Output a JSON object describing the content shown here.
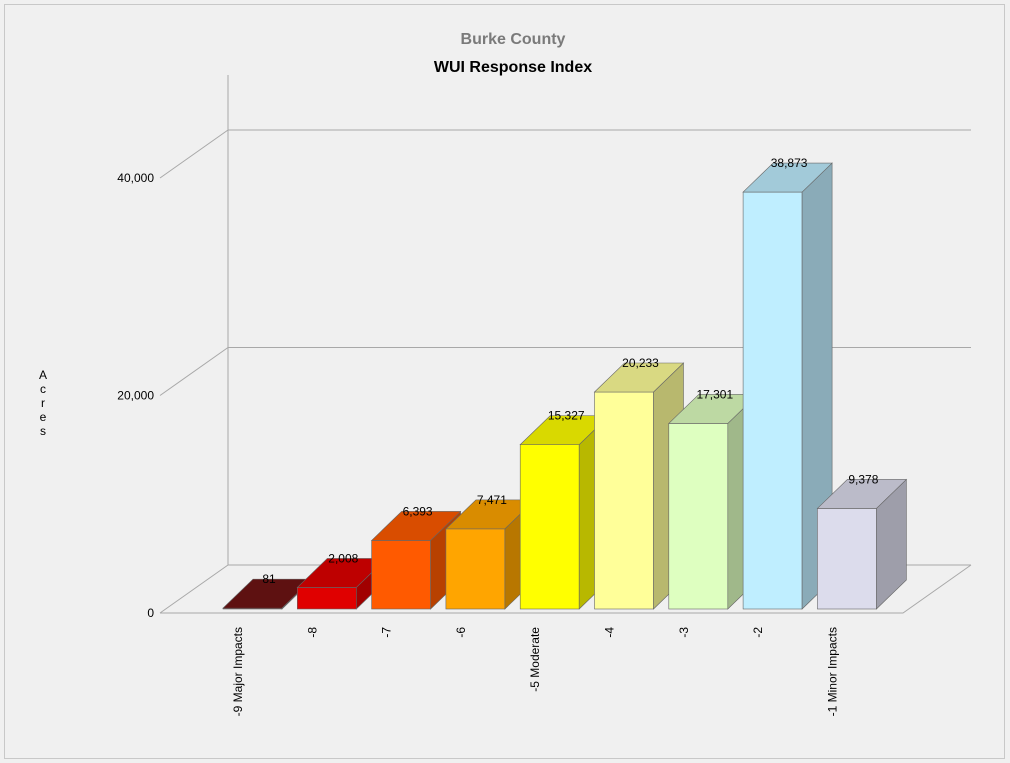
{
  "chart_data": {
    "type": "bar",
    "subtitle": "Burke County",
    "title": "WUI Response Index",
    "ylabel": "Acres",
    "xlabel": "",
    "ylim": [
      0,
      40000
    ],
    "yticks": [
      0,
      20000,
      40000
    ],
    "ytick_labels": [
      "0",
      "20,000",
      "40,000"
    ],
    "categories": [
      "-9 Major Impacts",
      "-8",
      "-7",
      "-6",
      "-5 Moderate",
      "-4",
      "-3",
      "-2",
      "-1 Minor Impacts"
    ],
    "values": [
      81,
      2008,
      6393,
      7471,
      15327,
      20233,
      17301,
      38873,
      9378
    ],
    "value_labels": [
      "81",
      "2,008",
      "6,393",
      "7,471",
      "15,327",
      "20,233",
      "17,301",
      "38,873",
      "9,378"
    ],
    "colors": [
      "#6e1414",
      "#e00000",
      "#ff5a00",
      "#ffa500",
      "#ffff00",
      "#ffff99",
      "#deffc0",
      "#bfeeff",
      "#dcdcec"
    ],
    "grid": true,
    "legend": "none",
    "style": "3d"
  }
}
